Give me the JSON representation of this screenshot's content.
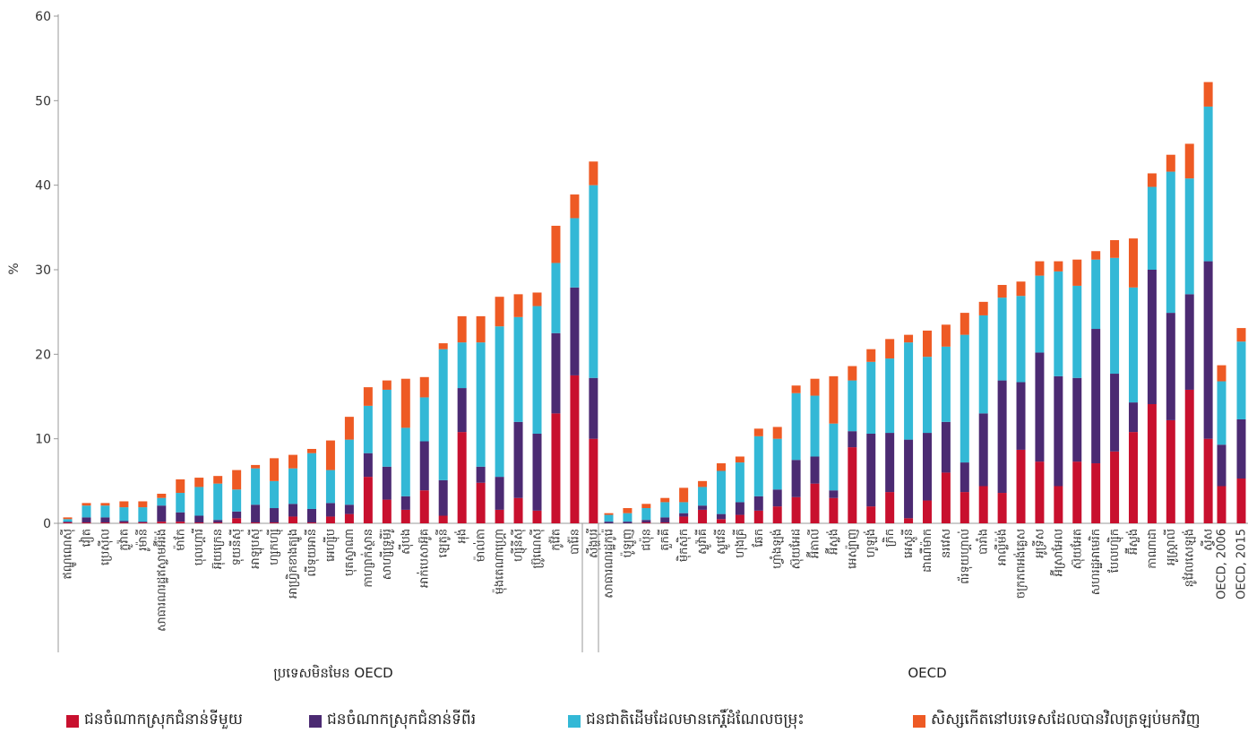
{
  "chart_data": {
    "type": "bar",
    "stacked": true,
    "ylabel": "%",
    "ylim": [
      0,
      60
    ],
    "yticks": [
      0,
      10,
      20,
      30,
      40,
      50,
      60
    ],
    "grid": false,
    "legend_position": "bottom",
    "colors": [
      "#c8102e",
      "#4b2a72",
      "#33b8d6",
      "#ee5a24"
    ],
    "series": [
      {
        "name": "ជនចំណាកស្រុកជំនាន់ទីមួយ"
      },
      {
        "name": "ជនចំណាកស្រុកជំនាន់ទីពីរ"
      },
      {
        "name": "ជនជាតិដើមដែលមានកេរ្តិ៍ដំណែលចម្រុះ"
      },
      {
        "name": "សិស្សកើតនៅបរទេសដែលបានវិលត្រឡប់មកវិញ"
      }
    ],
    "groups": [
      {
        "label": "ប្រទេសមិនមែន OECD",
        "categories": [
          "ឥណ្ឌូណេស៊ី",
          "វៀត",
          "ប្រេស៊ីល",
          "ក្លូវ៉ាត",
          "រូម៉ានី",
          "សាធារណរដ្ឋឥស្លាមអ៊ីរ៉ង់",
          "ម៉ាកែ",
          "បុលហ្គារី",
          "អ៊ុយក្រេន",
          "ទុយនីស៊ី",
          "អាឡុបស៊ី",
          "ហ្សកហ្ស៊ី",
          "អាហ្វ្រិកខាងត្បូង",
          "លីទុយអានី",
          "អេហ្ស៊ីប",
          "បុតស្វាណា",
          "កាហ្សាក់ស្ថាន",
          "សាហ្សីទ្រូមីរ៉ូ",
          "ស៊ីបង",
          "អាក់បេសាអ៊ូគ",
          "ឡេតូនី",
          "អុង់",
          "ម៉ាល់តា",
          "ម៉ុងតេណាហ្គ្រោ",
          "ហ្ស៊ីនីស៊ី",
          "ប្រ៊ូណេស៊ី",
          "កូវ៉ែត",
          "បារ៉ែន",
          "ស៊ីង្ហបុរី"
        ],
        "values": [
          [
            0.1,
            0.1,
            0.3,
            0.2
          ],
          [
            0.1,
            0.6,
            1.4,
            0.3
          ],
          [
            0.1,
            0.6,
            1.4,
            0.3
          ],
          [
            0.1,
            0.2,
            1.6,
            0.7
          ],
          [
            0.1,
            0.1,
            1.7,
            0.7
          ],
          [
            0.2,
            1.9,
            0.9,
            0.5
          ],
          [
            0.2,
            1.1,
            2.3,
            1.6
          ],
          [
            0.1,
            0.8,
            3.4,
            1.1
          ],
          [
            0.1,
            0.3,
            4.3,
            0.9
          ],
          [
            0.6,
            0.8,
            2.6,
            2.3
          ],
          [
            0.1,
            2.1,
            4.3,
            0.4
          ],
          [
            0.1,
            1.7,
            3.2,
            2.7
          ],
          [
            0.8,
            1.5,
            4.2,
            1.6
          ],
          [
            0.1,
            1.6,
            6.6,
            0.5
          ],
          [
            0.8,
            1.6,
            3.9,
            3.5
          ],
          [
            1.1,
            1.1,
            7.7,
            2.7
          ],
          [
            5.5,
            2.8,
            5.6,
            2.2
          ],
          [
            2.8,
            3.9,
            9.1,
            1.1
          ],
          [
            1.6,
            1.6,
            8.1,
            5.8
          ],
          [
            3.9,
            5.8,
            5.2,
            2.4
          ],
          [
            0.9,
            4.2,
            15.5,
            0.7
          ],
          [
            10.8,
            5.2,
            5.4,
            3.1
          ],
          [
            4.8,
            1.9,
            14.7,
            3.1
          ],
          [
            1.6,
            3.9,
            17.8,
            3.5
          ],
          [
            3.0,
            9.0,
            12.4,
            2.7
          ],
          [
            1.5,
            9.1,
            15.1,
            1.6
          ],
          [
            13.0,
            9.5,
            8.3,
            4.4
          ],
          [
            17.5,
            10.4,
            8.2,
            2.8
          ],
          [
            10.0,
            7.2,
            22.8,
            2.8
          ]
        ]
      },
      {
        "label": "OECD",
        "categories": [
          "សាធារណរដ្ឋកូរ៉េ",
          "ប៉ូឡូញ",
          "ជប៉ុន",
          "តួកគី",
          "ម៉ិកស៊ិក",
          "ស្លូវ៉ាគី",
          "ស្លូវេនី",
          "ហុងគ្រី",
          "ឆែក",
          "ហ្វាំងឡង់",
          "ស៊ុយអែដ",
          "អ៊ីតាលី",
          "អ៊ីស្លង់",
          "អេស្ប៉ាញ",
          "ហូឡង់",
          "ក្រិក",
          "អេស្តូនី",
          "ដាណឺម៉ាក",
          "នរវេស",
          "ព័រទុយហ្គាល់",
          "បារាំង",
          "អាល្លឺម៉ង់",
          "ចក្រភពអង់គ្លេស",
          "អូទ្រីស",
          "អ៊ីស្រាអែល",
          "ស៊ុយអែត",
          "សហរដ្ឋអាមេរិក",
          "បែលហ្ស៊ិក",
          "អ៊ីស្លង់",
          "កាណាដា",
          "អូស្ត្រាលី",
          "នូវែលសេឡង់",
          "ស្វីស"
        ],
        "values": [
          [
            0.0,
            0.2,
            0.8,
            0.2
          ],
          [
            0.0,
            0.2,
            1.0,
            0.6
          ],
          [
            0.1,
            0.3,
            1.4,
            0.5
          ],
          [
            0.1,
            0.6,
            1.8,
            0.5
          ],
          [
            0.8,
            0.4,
            1.3,
            1.7
          ],
          [
            1.6,
            0.5,
            2.2,
            0.7
          ],
          [
            0.5,
            0.6,
            5.1,
            0.9
          ],
          [
            1.0,
            1.5,
            4.7,
            0.7
          ],
          [
            1.5,
            1.7,
            7.1,
            0.9
          ],
          [
            2.0,
            2.0,
            6.0,
            1.4
          ],
          [
            3.1,
            4.4,
            7.9,
            0.9
          ],
          [
            4.7,
            3.2,
            7.2,
            2.0
          ],
          [
            3.0,
            0.9,
            7.9,
            5.6
          ],
          [
            9.0,
            1.9,
            6.0,
            1.7
          ],
          [
            2.0,
            8.6,
            8.5,
            1.5
          ],
          [
            3.7,
            7.0,
            8.8,
            2.3
          ],
          [
            0.6,
            9.3,
            11.5,
            0.9
          ],
          [
            2.7,
            8.0,
            9.0,
            3.1
          ],
          [
            6.0,
            6.0,
            8.9,
            2.6
          ],
          [
            3.7,
            3.5,
            15.1,
            2.6
          ],
          [
            4.4,
            8.6,
            11.6,
            1.6
          ],
          [
            3.6,
            13.3,
            9.8,
            1.5
          ],
          [
            8.7,
            8.0,
            10.2,
            1.7
          ],
          [
            7.3,
            12.9,
            9.1,
            1.7
          ],
          [
            4.4,
            13.0,
            12.4,
            1.2
          ],
          [
            7.3,
            9.9,
            10.9,
            3.1
          ],
          [
            7.1,
            15.9,
            8.2,
            1.0
          ],
          [
            8.5,
            9.2,
            13.7,
            2.1
          ],
          [
            10.8,
            3.5,
            13.6,
            5.8
          ],
          [
            14.1,
            15.9,
            9.8,
            1.6
          ],
          [
            12.2,
            12.7,
            16.7,
            2.0
          ],
          [
            15.8,
            11.3,
            13.7,
            4.1
          ],
          [
            10.0,
            21.0,
            18.3,
            2.9
          ]
        ]
      },
      {
        "label": "",
        "categories": [
          "OECD, 2006",
          "OECD, 2015"
        ],
        "values": [
          [
            4.4,
            4.9,
            7.5,
            1.9
          ],
          [
            5.3,
            7.0,
            9.2,
            1.6
          ]
        ]
      }
    ]
  }
}
